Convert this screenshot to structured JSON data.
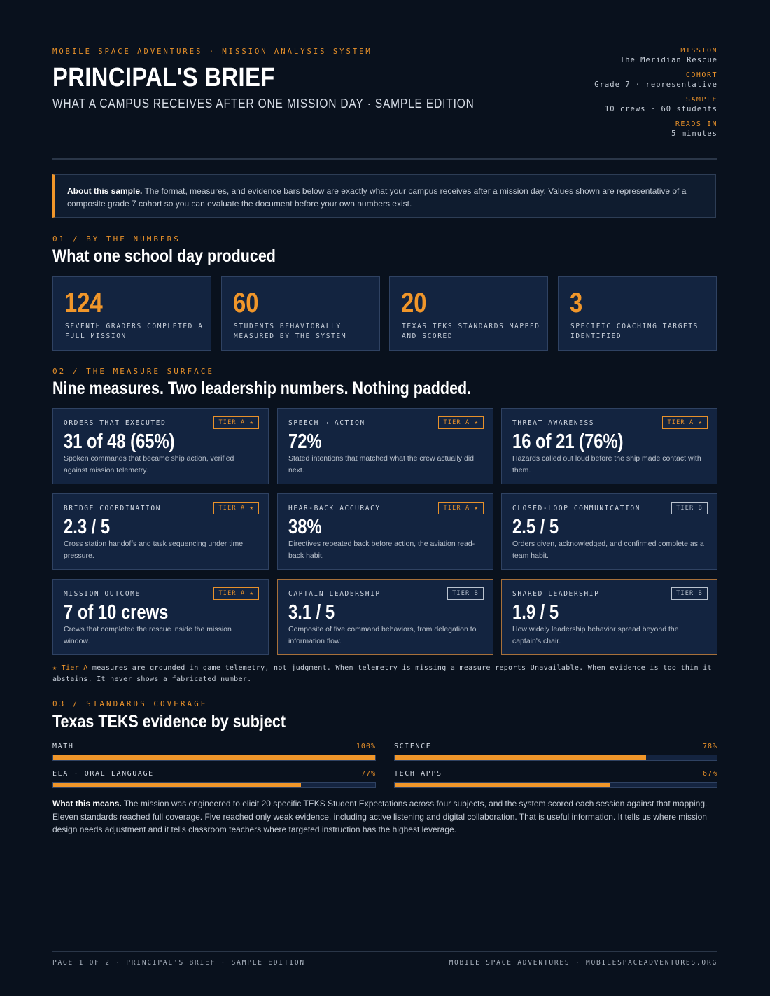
{
  "header": {
    "kicker": "MOBILE SPACE ADVENTURES · MISSION ANALYSIS SYSTEM",
    "title": "PRINCIPAL'S BRIEF",
    "subtitle": "WHAT A CAMPUS RECEIVES AFTER ONE MISSION DAY · SAMPLE EDITION",
    "meta": [
      {
        "label": "MISSION",
        "value": "The Meridian Rescue"
      },
      {
        "label": "COHORT",
        "value": "Grade 7 · representative"
      },
      {
        "label": "SAMPLE",
        "value": "10 crews · 60 students"
      },
      {
        "label": "READS IN",
        "value": "5 minutes"
      }
    ]
  },
  "about": {
    "lead": "About this sample.",
    "text": " The format, measures, and evidence bars below are exactly what your campus receives after a mission day. Values shown are representative of a composite grade 7 cohort so you can evaluate the document before your own numbers exist."
  },
  "section1": {
    "kicker": "01 / BY THE NUMBERS",
    "title": "What one school day produced",
    "stats": [
      {
        "value": "124",
        "label": "SEVENTH GRADERS COMPLETED A FULL MISSION"
      },
      {
        "value": "60",
        "label": "STUDENTS BEHAVIORALLY MEASURED BY THE SYSTEM"
      },
      {
        "value": "20",
        "label": "TEXAS TEKS STANDARDS MAPPED AND SCORED"
      },
      {
        "value": "3",
        "label": "SPECIFIC COACHING TARGETS IDENTIFIED"
      }
    ]
  },
  "section2": {
    "kicker": "02 / THE MEASURE SURFACE",
    "title": "Nine measures. Two leadership numbers. Nothing padded.",
    "measures": [
      {
        "label": "ORDERS THAT EXECUTED",
        "tier": "TIER A ★",
        "value": "31 of 48 (65%)",
        "desc": "Spoken commands that became ship action, verified against mission telemetry."
      },
      {
        "label": "SPEECH → ACTION",
        "tier": "TIER A ★",
        "value": "72%",
        "desc": "Stated intentions that matched what the crew actually did next."
      },
      {
        "label": "THREAT AWARENESS",
        "tier": "TIER A ★",
        "value": "16 of 21 (76%)",
        "desc": "Hazards called out loud before the ship made contact with them."
      },
      {
        "label": "BRIDGE COORDINATION",
        "tier": "TIER A ★",
        "value": "2.3 / 5",
        "desc": "Cross station handoffs and task sequencing under time pressure."
      },
      {
        "label": "HEAR-BACK ACCURACY",
        "tier": "TIER A ★",
        "value": "38%",
        "desc": "Directives repeated back before action, the aviation read-back habit."
      },
      {
        "label": "CLOSED-LOOP COMMUNICATION",
        "tier": "TIER B",
        "value": "2.5 / 5",
        "desc": "Orders given, acknowledged, and confirmed complete as a team habit."
      },
      {
        "label": "MISSION OUTCOME",
        "tier": "TIER A ★",
        "value": "7 of 10 crews",
        "desc": "Crews that completed the rescue inside the mission window."
      },
      {
        "label": "CAPTAIN LEADERSHIP",
        "tier": "TIER B",
        "value": "3.1 / 5",
        "desc": "Composite of five command behaviors, from delegation to information flow."
      },
      {
        "label": "SHARED LEADERSHIP",
        "tier": "TIER B",
        "value": "1.9 / 5",
        "desc": "How widely leadership behavior spread beyond the captain's chair."
      }
    ],
    "footnote_lead": "★ Tier A",
    "footnote": " measures are grounded in game telemetry, not judgment. When telemetry is missing a measure reports Unavailable. When evidence is too thin it abstains. It never shows a fabricated number."
  },
  "section3": {
    "kicker": "03 / STANDARDS COVERAGE",
    "title": "Texas TEKS evidence by subject",
    "bars": [
      {
        "label": "MATH",
        "value": 100,
        "display": "100%"
      },
      {
        "label": "SCIENCE",
        "value": 78,
        "display": "78%"
      },
      {
        "label": "ELA · ORAL LANGUAGE",
        "value": 77,
        "display": "77%"
      },
      {
        "label": "TECH APPS",
        "value": 67,
        "display": "67%"
      }
    ],
    "means_lead": "What this means.",
    "means_text": " The mission was engineered to elicit 20 specific TEKS Student Expectations across four subjects, and the system scored each session against that mapping. Eleven standards reached full coverage. Five reached only weak evidence, including active listening and digital collaboration. That is useful information. It tells us where mission design needs adjustment and it tells classroom teachers where targeted instruction has the highest leverage."
  },
  "footer": {
    "left": "PAGE 1 OF 2 · PRINCIPAL'S BRIEF · SAMPLE EDITION",
    "right": "MOBILE SPACE ADVENTURES · MOBILESPACEADVENTURES.ORG"
  },
  "colors": {
    "accent": "#f0962a",
    "background": "#09111d",
    "card": "#132440"
  }
}
